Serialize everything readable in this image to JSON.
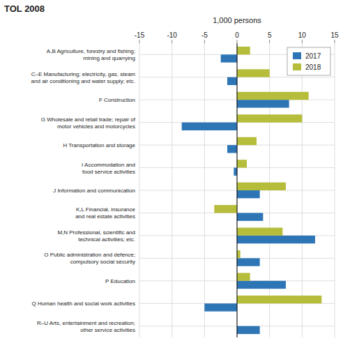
{
  "chart_data": {
    "type": "bar",
    "orientation": "horizontal",
    "title": "TOL 2008",
    "x_label": "1,000 persons",
    "categories": [
      "A,B Agriculture, forestry and fishing;\nmining and quarrying",
      "C–E Manufacturing; electricity, gas, steam\nand air conditioning and water supply; etc.",
      "F Construction",
      "G Wholesale and retail trade; repair of\nmotor vehicles and motorcycles",
      "H Transportation and storage",
      "I Accommodation and\nfood service activities",
      "J Information and communication",
      "K,L Financial, insurance\nand real estate activities",
      "M,N Professional, scientific and\ntechnical activities; etc.",
      "O Public administration and defence;\ncompulsory social security",
      "P Education",
      "Q Human health and social work activities",
      "R–U Arts, entertainment and recreation;\nother service activities"
    ],
    "series": [
      {
        "name": "2017",
        "color": "#2e75b6",
        "values": [
          -2.5,
          -1.5,
          8.0,
          -8.5,
          -1.5,
          -0.5,
          3.5,
          4.0,
          12.0,
          3.5,
          7.5,
          -5.0,
          3.5
        ]
      },
      {
        "name": "2018",
        "color": "#b5bd3a",
        "values": [
          2.0,
          5.0,
          11.0,
          10.0,
          3.0,
          1.5,
          7.5,
          -3.5,
          7.0,
          0.5,
          2.0,
          13.0,
          0.0
        ]
      }
    ],
    "xlim": [
      -15,
      15
    ],
    "xticks": [
      -15,
      -10,
      -5,
      0,
      5,
      10,
      15
    ],
    "grid": true,
    "legend": "upper right"
  }
}
